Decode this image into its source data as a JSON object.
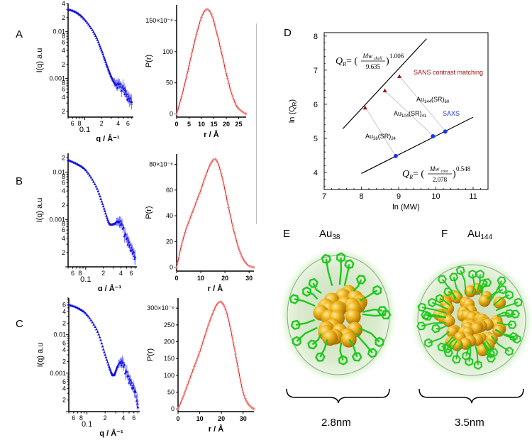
{
  "panels": {
    "letters": [
      "A",
      "B",
      "C",
      "D",
      "E",
      "F"
    ]
  },
  "chart_data": [
    {
      "id": "A-saxs",
      "type": "scatter",
      "panel": "A",
      "xlabel": "q / Å⁻¹",
      "ylabel": "I(q)  a.u",
      "xscale": "log",
      "yscale": "log",
      "xlim": [
        0.05,
        0.75
      ],
      "ylim": [
        0.00015,
        0.04
      ],
      "x_ticks": [
        "6",
        "8",
        "0.1",
        "2",
        "4",
        "6"
      ],
      "y_ticks": [
        "4",
        "2",
        "0.01",
        "8",
        "6",
        "4",
        "2",
        "0.001",
        "8",
        "6",
        "4",
        "2"
      ],
      "color": "#1010e0",
      "x": [
        0.05,
        0.07,
        0.1,
        0.15,
        0.2,
        0.25,
        0.3,
        0.35,
        0.4,
        0.5,
        0.6,
        0.7
      ],
      "y": [
        0.03,
        0.026,
        0.018,
        0.009,
        0.004,
        0.0019,
        0.0011,
        0.0008,
        0.0007,
        0.0006,
        0.0004,
        0.0003
      ]
    },
    {
      "id": "A-pr",
      "type": "line",
      "panel": "A",
      "xlabel": "r / Å",
      "ylabel": "P(r)",
      "xlim": [
        0,
        28
      ],
      "ylim": [
        -5e-06,
        0.000175
      ],
      "x_ticks": [
        "0",
        "5",
        "10",
        "15",
        "20",
        "25"
      ],
      "y_ticks": [
        "0",
        "50",
        "100",
        "150×10⁻⁶"
      ],
      "color": "#e01010",
      "x": [
        0,
        2,
        4,
        6,
        8,
        10,
        12,
        14,
        16,
        18,
        20,
        22,
        24,
        26,
        28
      ],
      "y": [
        0,
        2.8e-05,
        6e-05,
        9.5e-05,
        0.000128,
        0.000155,
        0.000168,
        0.00016,
        0.000133,
        0.0001,
        6.5e-05,
        3.5e-05,
        1.4e-05,
        5e-06,
        0
      ]
    },
    {
      "id": "B-saxs",
      "type": "scatter",
      "panel": "B",
      "xlabel": "q / Å⁻¹",
      "ylabel": "I(q)  a.u",
      "xscale": "log",
      "yscale": "log",
      "xlim": [
        0.05,
        0.75
      ],
      "ylim": [
        0.0001,
        0.025
      ],
      "x_ticks": [
        "6",
        "8",
        "0.1",
        "2",
        "4",
        "6"
      ],
      "y_ticks": [
        "2",
        "0.01",
        "8",
        "6",
        "4",
        "2",
        "0.001",
        "8",
        "6",
        "4",
        "2"
      ],
      "color": "#1010e0",
      "x": [
        0.05,
        0.07,
        0.1,
        0.15,
        0.2,
        0.25,
        0.3,
        0.35,
        0.4,
        0.5,
        0.6,
        0.7
      ],
      "y": [
        0.018,
        0.015,
        0.011,
        0.005,
        0.0019,
        0.00085,
        0.0008,
        0.0009,
        0.0008,
        0.0004,
        0.00025,
        0.00015
      ]
    },
    {
      "id": "B-pr",
      "type": "line",
      "panel": "B",
      "xlabel": "r / Å",
      "ylabel": "P(r)",
      "xlim": [
        0,
        32
      ],
      "ylim": [
        -3e-06,
        8.8e-05
      ],
      "x_ticks": [
        "0",
        "10",
        "20",
        "30"
      ],
      "y_ticks": [
        "0",
        "20",
        "40",
        "60",
        "80×10⁻⁶"
      ],
      "color": "#e01010",
      "x": [
        0,
        2,
        4,
        6,
        8,
        10,
        12,
        14,
        16,
        18,
        20,
        22,
        24,
        26,
        28,
        30,
        32
      ],
      "y": [
        0,
        1.7e-05,
        3e-05,
        4e-05,
        5e-05,
        6e-05,
        7.1e-05,
        8e-05,
        8.4e-05,
        7.6e-05,
        6e-05,
        4.2e-05,
        2.6e-05,
        1.3e-05,
        5e-06,
        1e-06,
        0
      ]
    },
    {
      "id": "C-saxs",
      "type": "scatter",
      "panel": "C",
      "xlabel": "q / Å⁻¹",
      "ylabel": "I(q)  a.u",
      "xscale": "log",
      "yscale": "log",
      "xlim": [
        0.05,
        0.75
      ],
      "ylim": [
        0.0001,
        0.09
      ],
      "x_ticks": [
        "6",
        "8",
        "0.1",
        "2",
        "4",
        "6"
      ],
      "y_ticks": [
        "6",
        "4",
        "2",
        "0.01",
        "6",
        "4",
        "2",
        "0.001",
        "6",
        "4",
        "2"
      ],
      "color": "#1010e0",
      "x": [
        0.05,
        0.07,
        0.1,
        0.15,
        0.2,
        0.25,
        0.28,
        0.32,
        0.36,
        0.4,
        0.5,
        0.6,
        0.7
      ],
      "y": [
        0.06,
        0.05,
        0.033,
        0.012,
        0.003,
        0.0011,
        0.0009,
        0.0015,
        0.0019,
        0.0016,
        0.0007,
        0.0004,
        0.00015
      ]
    },
    {
      "id": "C-pr",
      "type": "line",
      "panel": "C",
      "xlabel": "r / Å",
      "ylabel": "P(r)",
      "xlim": [
        0,
        35
      ],
      "ylim": [
        -8e-06,
        0.00033
      ],
      "x_ticks": [
        "0",
        "10",
        "20",
        "30"
      ],
      "y_ticks": [
        "0",
        "50",
        "100",
        "150",
        "200",
        "250",
        "300×10⁻⁶"
      ],
      "color": "#e01010",
      "x": [
        0,
        2,
        4,
        6,
        8,
        10,
        12,
        14,
        16,
        18,
        20,
        22,
        24,
        26,
        28,
        30,
        32,
        34,
        35
      ],
      "y": [
        0,
        3e-05,
        6.5e-05,
        0.0001,
        0.000135,
        0.00017,
        0.00021,
        0.00025,
        0.000285,
        0.000312,
        0.000318,
        0.000295,
        0.000245,
        0.00018,
        0.00011,
        5e-05,
        1.8e-05,
        4e-06,
        0
      ]
    },
    {
      "id": "D-scaling",
      "type": "scatter",
      "panel": "D",
      "xlabel": "ln (MW)",
      "ylabel": "ln (Q_R)",
      "xlim": [
        7,
        11.4
      ],
      "ylim": [
        3.5,
        8.1
      ],
      "x_ticks": [
        "7",
        "8",
        "9",
        "10",
        "11"
      ],
      "y_ticks": [
        "4",
        "5",
        "6",
        "7",
        "8"
      ],
      "series": [
        {
          "name": "SANS contrast matching",
          "color": "#a01010",
          "marker": "triangle",
          "x": [
            8.1,
            8.63,
            9.02
          ],
          "y": [
            5.9,
            6.4,
            6.82
          ],
          "fit_line": {
            "x": [
              7.5,
              9.75
            ],
            "y": [
              5.28,
              7.92
            ]
          },
          "equation": {
            "lhs": "Q",
            "lhs_sub": "R",
            "num": "Mw",
            "num_sub": "shell",
            "den": "9.635",
            "exp": "1.006"
          }
        },
        {
          "name": "SAXS",
          "color": "#1a3adf",
          "marker": "circle",
          "x": [
            8.92,
            9.92,
            10.25
          ],
          "y": [
            4.48,
            5.06,
            5.2
          ],
          "fit_line": {
            "x": [
              8.0,
              11.0
            ],
            "y": [
              3.97,
              5.62
            ]
          },
          "equation": {
            "lhs": "Q",
            "lhs_sub": "R",
            "num": "Mw",
            "num_sub": "core",
            "den": "2.078",
            "exp": "0.548"
          }
        }
      ],
      "annotations": [
        {
          "base": "Au",
          "sub1": "38",
          "mid": "(SR)",
          "sub2": "24"
        },
        {
          "base": "Au",
          "sub1": "104",
          "mid": "(SR)",
          "sub2": "41"
        },
        {
          "base": "Au",
          "sub1": "144",
          "mid": "(SR)",
          "sub2": "60"
        }
      ]
    }
  ],
  "structures": [
    {
      "letter": "E",
      "base": "Au",
      "sub": "38",
      "size": "2.8nm"
    },
    {
      "letter": "F",
      "base": "Au",
      "sub": "144",
      "size": "3.5nm"
    }
  ]
}
